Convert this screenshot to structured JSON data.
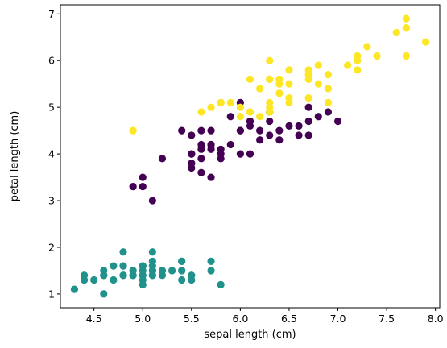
{
  "chart_data": {
    "type": "scatter",
    "title": "",
    "xlabel": "sepal length (cm)",
    "ylabel": "petal length (cm)",
    "xlim": [
      4.156,
      8.044
    ],
    "ylim": [
      0.705,
      7.195
    ],
    "xticks": [
      "4.5",
      "5.0",
      "5.5",
      "6.0",
      "6.5",
      "7.0",
      "7.5",
      "8.0"
    ],
    "yticks": [
      "1",
      "2",
      "3",
      "4",
      "5",
      "6",
      "7"
    ],
    "xtick_values": [
      4.5,
      5.0,
      5.5,
      6.0,
      6.5,
      7.0,
      7.5,
      8.0
    ],
    "ytick_values": [
      1,
      2,
      3,
      4,
      5,
      6,
      7
    ],
    "grid": false,
    "legend": "none",
    "colors": {
      "teal": "#21918c",
      "purple": "#440154",
      "yellow": "#fde725"
    },
    "series": [
      {
        "color": "#21918c",
        "x": [
          5.1,
          4.9,
          4.7,
          4.6,
          5.0,
          5.4,
          4.6,
          5.0,
          4.4,
          4.9,
          5.4,
          4.8,
          4.8,
          4.3,
          5.8,
          5.7,
          5.4,
          5.1,
          5.7,
          5.1,
          5.4,
          5.1,
          4.6,
          5.1,
          4.8,
          5.0,
          5.0,
          5.2,
          5.2,
          4.7,
          4.8,
          5.4,
          5.2,
          5.5,
          4.9,
          5.0,
          5.5,
          4.9,
          4.4,
          5.1,
          5.0,
          4.5,
          4.4,
          5.0,
          5.1,
          4.8,
          5.1,
          4.6,
          5.3,
          5.0
        ],
        "y": [
          1.4,
          1.4,
          1.3,
          1.5,
          1.4,
          1.7,
          1.4,
          1.5,
          1.4,
          1.5,
          1.5,
          1.6,
          1.4,
          1.1,
          1.2,
          1.5,
          1.3,
          1.4,
          1.7,
          1.5,
          1.7,
          1.5,
          1.0,
          1.7,
          1.9,
          1.6,
          1.6,
          1.5,
          1.4,
          1.6,
          1.6,
          1.5,
          1.5,
          1.4,
          1.5,
          1.2,
          1.3,
          1.4,
          1.3,
          1.5,
          1.3,
          1.3,
          1.3,
          1.6,
          1.9,
          1.4,
          1.6,
          1.4,
          1.5,
          1.4
        ]
      },
      {
        "color": "#440154",
        "x": [
          7.0,
          6.4,
          6.9,
          5.5,
          6.5,
          5.7,
          6.3,
          4.9,
          6.6,
          5.2,
          5.0,
          5.9,
          6.0,
          6.1,
          5.6,
          6.7,
          5.6,
          5.8,
          6.2,
          5.6,
          5.9,
          6.1,
          6.3,
          6.1,
          6.4,
          6.6,
          6.8,
          6.7,
          6.0,
          5.7,
          5.5,
          5.5,
          5.8,
          6.0,
          5.4,
          6.0,
          6.7,
          6.3,
          5.6,
          5.5,
          5.5,
          6.1,
          5.8,
          5.0,
          5.6,
          5.7,
          5.7,
          6.2,
          5.1,
          5.7
        ],
        "y": [
          4.7,
          4.5,
          4.9,
          4.0,
          4.6,
          4.5,
          4.7,
          3.3,
          4.6,
          3.9,
          3.5,
          4.2,
          4.0,
          4.7,
          3.6,
          4.4,
          4.5,
          4.1,
          4.5,
          3.9,
          4.8,
          4.0,
          4.9,
          4.7,
          4.3,
          4.4,
          4.8,
          5.0,
          4.5,
          3.5,
          3.8,
          3.7,
          3.9,
          5.1,
          4.5,
          4.5,
          4.7,
          4.4,
          4.1,
          4.0,
          4.4,
          4.6,
          4.0,
          3.3,
          4.2,
          4.2,
          4.2,
          4.3,
          3.0,
          4.1
        ]
      },
      {
        "color": "#fde725",
        "x": [
          6.3,
          5.8,
          7.1,
          6.3,
          6.5,
          7.6,
          4.9,
          7.3,
          6.7,
          7.2,
          6.5,
          6.4,
          6.8,
          5.7,
          5.8,
          6.4,
          6.5,
          7.7,
          7.7,
          6.0,
          6.9,
          5.6,
          7.7,
          6.3,
          6.7,
          7.2,
          6.2,
          6.1,
          6.4,
          7.2,
          7.4,
          7.9,
          6.4,
          6.3,
          6.1,
          7.7,
          6.3,
          6.4,
          6.0,
          6.9,
          6.7,
          6.9,
          5.8,
          6.8,
          6.7,
          6.7,
          6.3,
          6.5,
          6.2,
          5.9
        ],
        "y": [
          6.0,
          5.1,
          5.9,
          5.6,
          5.8,
          6.6,
          4.5,
          6.3,
          5.8,
          6.1,
          5.1,
          5.3,
          5.5,
          5.0,
          5.1,
          5.3,
          5.5,
          6.7,
          6.9,
          5.0,
          5.7,
          4.9,
          6.7,
          4.9,
          5.7,
          6.0,
          4.8,
          4.9,
          5.6,
          5.8,
          6.1,
          6.4,
          5.6,
          5.1,
          5.6,
          6.1,
          5.6,
          5.5,
          4.8,
          5.4,
          5.6,
          5.1,
          5.1,
          5.9,
          5.7,
          5.2,
          5.0,
          5.2,
          5.4,
          5.1
        ]
      }
    ]
  }
}
